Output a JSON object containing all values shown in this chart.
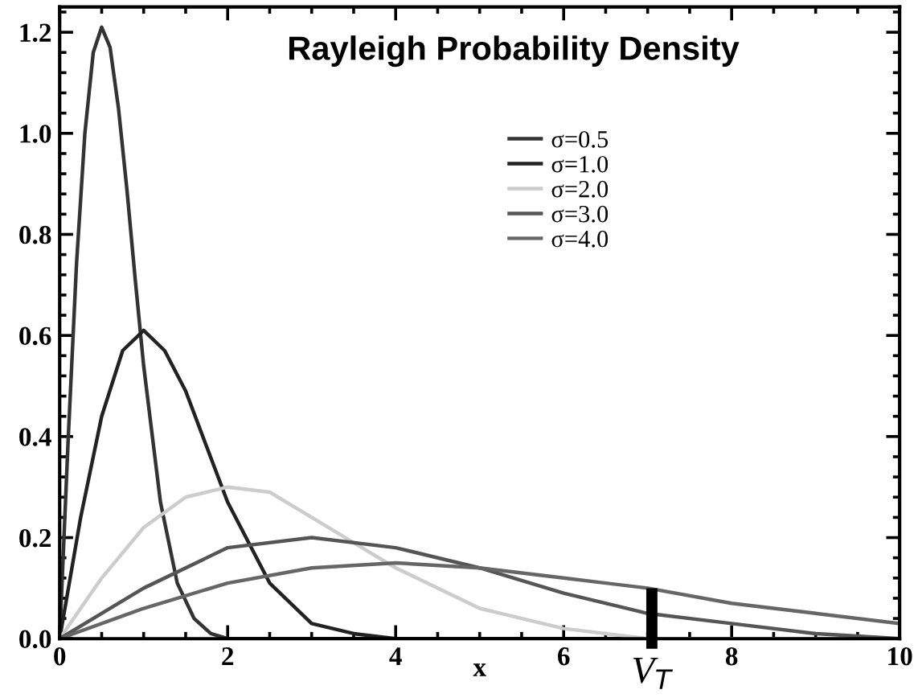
{
  "chart_data": {
    "type": "line",
    "title": "Rayleigh Probability Density",
    "xlabel": "x",
    "xlim": [
      0,
      10
    ],
    "ylim": [
      0,
      1.25
    ],
    "xticks": [
      0,
      2,
      4,
      6,
      8,
      10
    ],
    "yticks": [
      {
        "value": 0,
        "label": "0.0"
      },
      {
        "value": 0.2,
        "label": "0.2"
      },
      {
        "value": 0.4,
        "label": "0.4"
      },
      {
        "value": 0.6,
        "label": "0.6"
      },
      {
        "value": 0.8,
        "label": "0.8"
      },
      {
        "value": 1.0,
        "label": "1.0"
      },
      {
        "value": 1.2,
        "label": "1.2"
      }
    ],
    "grid": false,
    "legend": "top right",
    "line_style": "solid",
    "marker": "none",
    "annotations": [
      {
        "text": "V$_{T}$",
        "x": 7.05,
        "y": 0.1
      }
    ],
    "series": [
      {
        "name": "σ=0.5",
        "color": "#333333",
        "x": [
          0,
          0.1,
          0.2,
          0.3,
          0.4,
          0.5,
          0.6,
          0.7,
          0.8,
          0.9,
          1.0,
          1.2,
          1.4,
          1.6,
          1.8,
          2.0,
          3,
          10
        ],
        "values": [
          0,
          0.39,
          0.74,
          1.0,
          1.16,
          1.21,
          1.17,
          1.05,
          0.89,
          0.71,
          0.54,
          0.27,
          0.11,
          0.04,
          0.01,
          0,
          0,
          0
        ]
      },
      {
        "name": "σ=1.0",
        "color": "#222222",
        "x": [
          0,
          0.25,
          0.5,
          0.75,
          1,
          1.25,
          1.5,
          1.75,
          2,
          2.5,
          3,
          3.5,
          4,
          5,
          10
        ],
        "values": [
          0,
          0.24,
          0.44,
          0.57,
          0.61,
          0.57,
          0.49,
          0.38,
          0.27,
          0.11,
          0.03,
          0.01,
          0,
          0,
          0
        ]
      },
      {
        "name": "σ=2.0",
        "color": "#cccccc",
        "x": [
          0,
          0.5,
          1,
          1.5,
          2,
          2.5,
          3,
          3.5,
          4,
          5,
          6,
          7,
          8,
          10
        ],
        "values": [
          0,
          0.12,
          0.22,
          0.28,
          0.3,
          0.29,
          0.24,
          0.19,
          0.14,
          0.06,
          0.02,
          0,
          0,
          0
        ]
      },
      {
        "name": "σ=3.0",
        "color": "#555555",
        "x": [
          0,
          1,
          2,
          3,
          4,
          5,
          6,
          7,
          8,
          9,
          10
        ],
        "values": [
          0,
          0.1,
          0.18,
          0.2,
          0.18,
          0.14,
          0.09,
          0.05,
          0.03,
          0.01,
          0
        ]
      },
      {
        "name": "σ=4.0",
        "color": "#666666",
        "x": [
          0,
          1,
          2,
          3,
          4,
          5,
          6,
          7,
          8,
          9,
          10
        ],
        "values": [
          0,
          0.06,
          0.11,
          0.14,
          0.15,
          0.14,
          0.12,
          0.1,
          0.07,
          0.05,
          0.03
        ]
      }
    ]
  }
}
